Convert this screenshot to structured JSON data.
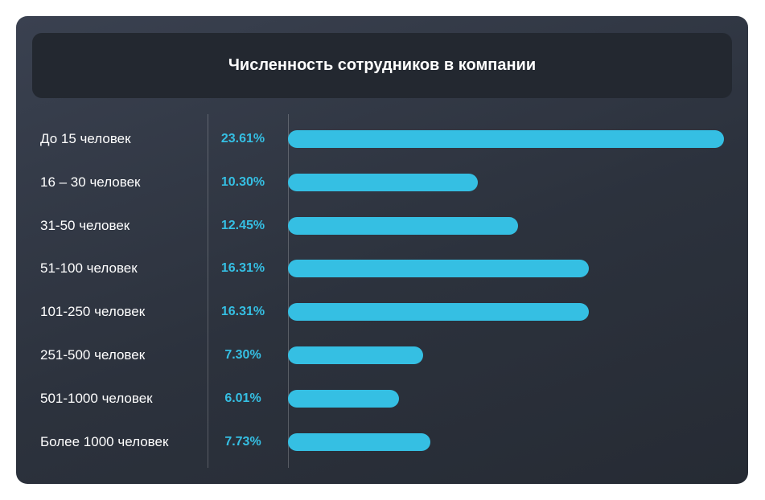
{
  "chart_data": {
    "type": "bar",
    "orientation": "horizontal",
    "title": "Численность сотрудников в компании",
    "categories": [
      "До 15 человек",
      "16 – 30 человек",
      "31-50 человек",
      "51-100 человек",
      "101-250 человек",
      "251-500 человек",
      "501-1000 человек",
      "Более 1000 человек"
    ],
    "values": [
      23.61,
      10.3,
      12.45,
      16.31,
      16.31,
      7.3,
      6.01,
      7.73
    ],
    "value_labels": [
      "23.61%",
      "10.30%",
      "12.45%",
      "16.31%",
      "16.31%",
      "7.30%",
      "6.01%",
      "7.73%"
    ],
    "unit": "%",
    "xlim": [
      0,
      23.61
    ],
    "grid": false,
    "colors": {
      "bar": "#35bfe3",
      "label": "#35bfe3",
      "text": "#ffffff",
      "background": "#2f3540"
    }
  }
}
